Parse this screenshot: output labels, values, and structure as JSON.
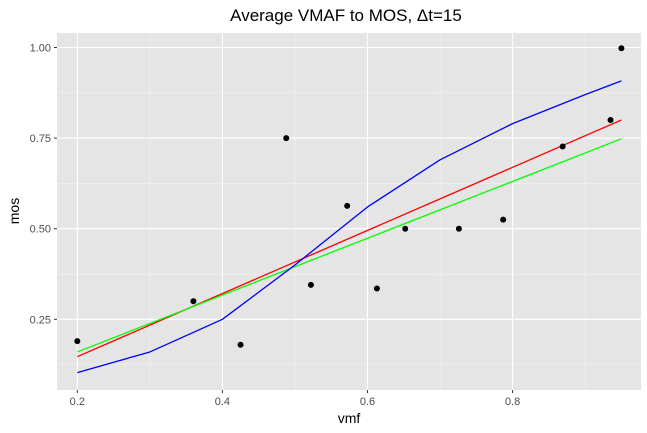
{
  "chart_data": {
    "type": "scatter",
    "title": "Average VMAF to MOS, Δt=15",
    "xlabel": "vmf",
    "ylabel": "mos",
    "xlim": [
      0.172,
      0.977
    ],
    "ylim": [
      0.055,
      1.04
    ],
    "x_ticks": [
      0.2,
      0.4,
      0.6,
      0.8
    ],
    "x_tick_labels": [
      "0.2",
      "0.4",
      "0.6",
      "0.8"
    ],
    "y_ticks": [
      0.25,
      0.5,
      0.75,
      1.0
    ],
    "y_tick_labels": [
      "0.25",
      "0.50",
      "0.75",
      "1.00"
    ],
    "grid": true,
    "background": "#e5e5e5",
    "points": {
      "x": [
        0.2,
        0.36,
        0.425,
        0.488,
        0.522,
        0.572,
        0.613,
        0.652,
        0.726,
        0.787,
        0.869,
        0.935,
        0.95
      ],
      "y": [
        0.19,
        0.3,
        0.18,
        0.75,
        0.345,
        0.563,
        0.335,
        0.5,
        0.5,
        0.525,
        0.727,
        0.8,
        0.998
      ],
      "color": "#000000"
    },
    "series": [
      {
        "type": "line",
        "color": "#ff0000",
        "x": [
          0.2,
          0.95
        ],
        "y": [
          0.147,
          0.8
        ]
      },
      {
        "type": "line",
        "color": "#00ff00",
        "x": [
          0.2,
          0.95
        ],
        "y": [
          0.16,
          0.748
        ]
      },
      {
        "type": "curve",
        "color": "#0000ff",
        "x": [
          0.2,
          0.3,
          0.4,
          0.5,
          0.6,
          0.7,
          0.8,
          0.9,
          0.95
        ],
        "y": [
          0.103,
          0.16,
          0.25,
          0.4,
          0.56,
          0.69,
          0.79,
          0.87,
          0.908
        ]
      }
    ]
  }
}
